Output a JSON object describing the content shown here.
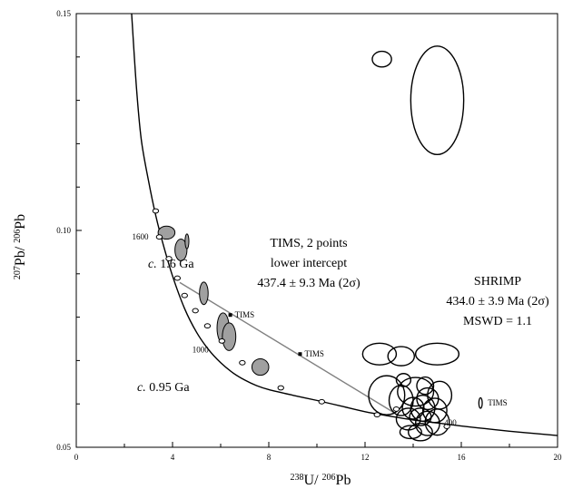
{
  "chart_data": {
    "type": "scatter",
    "title": "",
    "xlabel": {
      "sup1": "238",
      "base1": "U/ ",
      "sup2": "206",
      "base2": "Pb"
    },
    "ylabel": {
      "sup1": "207",
      "base1": "Pb/ ",
      "sup2": "206",
      "base2": "Pb"
    },
    "xlim": [
      0,
      20
    ],
    "ylim": [
      0.05,
      0.15
    ],
    "xticks": [
      0,
      4,
      8,
      12,
      16,
      20
    ],
    "xtick_labels": [
      "0",
      "4",
      "8",
      "12",
      "16",
      "20"
    ],
    "yticks": [
      0.05,
      0.1,
      0.15
    ],
    "ytick_labels": [
      "0.05",
      "0.10",
      "0.15"
    ],
    "grid": false,
    "concordia": {
      "x": [
        2.3,
        2.5,
        2.7,
        3.0,
        3.3,
        3.6,
        4.0,
        4.5,
        5.0,
        5.5,
        6.0,
        6.5,
        7.0,
        7.5,
        8.0,
        9.0,
        10.0,
        11.0,
        12.0,
        13.0,
        14.0,
        15.0,
        16.0,
        17.0,
        18.0,
        19.0,
        20.0
      ],
      "y": [
        0.15,
        0.133,
        0.121,
        0.1115,
        0.1035,
        0.097,
        0.0895,
        0.082,
        0.0765,
        0.0725,
        0.0695,
        0.0672,
        0.0655,
        0.0642,
        0.0633,
        0.062,
        0.0608,
        0.0595,
        0.0582,
        0.0572,
        0.0563,
        0.0556,
        0.0549,
        0.0543,
        0.0537,
        0.0532,
        0.0527
      ]
    },
    "age_markers": [
      {
        "x": 3.3,
        "y": 0.1045
      },
      {
        "x": 3.45,
        "y": 0.0985
      },
      {
        "x": 3.85,
        "y": 0.0935
      },
      {
        "x": 4.2,
        "y": 0.089
      },
      {
        "x": 4.5,
        "y": 0.085
      },
      {
        "x": 4.95,
        "y": 0.0815
      },
      {
        "x": 5.45,
        "y": 0.078
      },
      {
        "x": 6.05,
        "y": 0.0745
      },
      {
        "x": 6.9,
        "y": 0.0695
      },
      {
        "x": 8.5,
        "y": 0.0637
      },
      {
        "x": 10.2,
        "y": 0.0605
      },
      {
        "x": 12.5,
        "y": 0.0575
      },
      {
        "x": 13.3,
        "y": 0.0588
      },
      {
        "x": 15.4,
        "y": 0.0548
      }
    ],
    "marker_labels": [
      {
        "text": "1600",
        "x": 3.0,
        "y": 0.0985
      },
      {
        "text": "1000",
        "x": 5.5,
        "y": 0.0725
      },
      {
        "text": "400",
        "x": 15.8,
        "y": 0.0557
      }
    ],
    "discordia": {
      "x": [
        4.3,
        13.2
      ],
      "y": [
        0.088,
        0.058
      ]
    },
    "tims_points": [
      {
        "x": 6.4,
        "y": 0.0805,
        "label": "TIMS"
      },
      {
        "x": 9.3,
        "y": 0.0715,
        "label": "TIMS"
      }
    ],
    "tims_ellipse": {
      "x": 16.8,
      "y": 0.0602,
      "rx": 0.07,
      "ry": 0.0012,
      "label": "TIMS"
    },
    "filled_ellipses": [
      {
        "x": 3.75,
        "y": 0.0995,
        "rx": 0.35,
        "ry": 0.0015
      },
      {
        "x": 4.35,
        "y": 0.0955,
        "rx": 0.25,
        "ry": 0.0025
      },
      {
        "x": 4.6,
        "y": 0.0975,
        "rx": 0.08,
        "ry": 0.0017
      },
      {
        "x": 5.3,
        "y": 0.0855,
        "rx": 0.18,
        "ry": 0.0026
      },
      {
        "x": 6.1,
        "y": 0.0775,
        "rx": 0.25,
        "ry": 0.0035
      },
      {
        "x": 6.35,
        "y": 0.0755,
        "rx": 0.28,
        "ry": 0.0032
      },
      {
        "x": 7.65,
        "y": 0.0685,
        "rx": 0.35,
        "ry": 0.0019
      }
    ],
    "open_ellipses": [
      {
        "x": 12.7,
        "y": 0.1395,
        "rx": 0.4,
        "ry": 0.0018
      },
      {
        "x": 15.0,
        "y": 0.13,
        "rx": 1.1,
        "ry": 0.0125
      },
      {
        "x": 12.6,
        "y": 0.0715,
        "rx": 0.7,
        "ry": 0.0025
      },
      {
        "x": 13.5,
        "y": 0.071,
        "rx": 0.55,
        "ry": 0.0022
      },
      {
        "x": 15.0,
        "y": 0.0715,
        "rx": 0.9,
        "ry": 0.0025
      },
      {
        "x": 12.9,
        "y": 0.062,
        "rx": 0.75,
        "ry": 0.0045
      },
      {
        "x": 13.5,
        "y": 0.0608,
        "rx": 0.5,
        "ry": 0.0035
      },
      {
        "x": 14.1,
        "y": 0.0628,
        "rx": 0.75,
        "ry": 0.0033
      },
      {
        "x": 14.4,
        "y": 0.059,
        "rx": 0.5,
        "ry": 0.003
      },
      {
        "x": 14.6,
        "y": 0.0612,
        "rx": 0.45,
        "ry": 0.0025
      },
      {
        "x": 14.9,
        "y": 0.0585,
        "rx": 0.5,
        "ry": 0.0028
      },
      {
        "x": 15.1,
        "y": 0.062,
        "rx": 0.5,
        "ry": 0.0032
      },
      {
        "x": 14.0,
        "y": 0.059,
        "rx": 0.45,
        "ry": 0.0025
      },
      {
        "x": 13.8,
        "y": 0.0565,
        "rx": 0.5,
        "ry": 0.0025
      },
      {
        "x": 14.3,
        "y": 0.057,
        "rx": 0.45,
        "ry": 0.002
      },
      {
        "x": 14.6,
        "y": 0.0555,
        "rx": 0.5,
        "ry": 0.0028
      },
      {
        "x": 15.0,
        "y": 0.0558,
        "rx": 0.5,
        "ry": 0.003
      },
      {
        "x": 14.3,
        "y": 0.0535,
        "rx": 0.5,
        "ry": 0.002
      },
      {
        "x": 13.9,
        "y": 0.0535,
        "rx": 0.45,
        "ry": 0.0015
      },
      {
        "x": 14.5,
        "y": 0.0642,
        "rx": 0.35,
        "ry": 0.002
      },
      {
        "x": 13.6,
        "y": 0.0655,
        "rx": 0.3,
        "ry": 0.0015
      }
    ],
    "annotations": {
      "age_16": {
        "prefix": "c.",
        "rest": " 1.6 Ga"
      },
      "age_095": {
        "prefix": "c.",
        "rest": " 0.95 Ga"
      },
      "tims_line1": "TIMS, 2 points",
      "tims_line2": "lower intercept",
      "tims_line3": "437.4 ± 9.3 Ma (2σ)",
      "shrimp_line1": "SHRIMP",
      "shrimp_line2": "434.0 ± 3.9 Ma (2σ)",
      "shrimp_line3": "MSWD = 1.1"
    },
    "colors": {
      "filled": "#a0a0a0",
      "line": "#000000",
      "discordia": "#808080"
    }
  }
}
